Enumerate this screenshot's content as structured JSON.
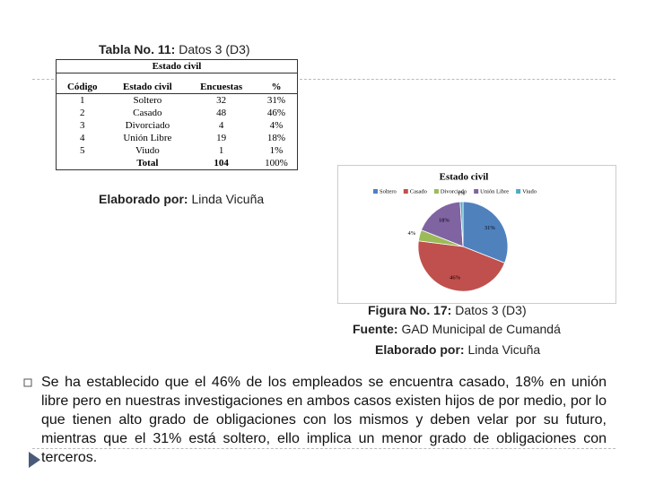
{
  "table": {
    "caption_label": "Tabla No. 11:",
    "caption_text": "Datos 3 (D3)",
    "group_header": "Estado civil",
    "columns": [
      "Código",
      "Estado civil",
      "Encuestas",
      "%"
    ],
    "rows": [
      [
        "1",
        "Soltero",
        "32",
        "31%"
      ],
      [
        "2",
        "Casado",
        "48",
        "46%"
      ],
      [
        "3",
        "Divorciado",
        "4",
        "4%"
      ],
      [
        "4",
        "Unión Libre",
        "19",
        "18%"
      ],
      [
        "5",
        "Viudo",
        "1",
        "1%"
      ]
    ],
    "total": {
      "label": "Total",
      "count": "104",
      "percent": "100%"
    }
  },
  "table_credit": {
    "label": "Elaborado por:",
    "text": "Linda Vicuña"
  },
  "chart_data": {
    "type": "pie",
    "title": "Estado civil",
    "categories": [
      "Soltero",
      "Casado",
      "Divorciado",
      "Unión Libre",
      "Viudo"
    ],
    "values": [
      31,
      46,
      4,
      18,
      1
    ],
    "value_labels": [
      "31%",
      "46%",
      "4%",
      "18%",
      "1%"
    ],
    "colors": [
      "#4f81bd",
      "#c0504d",
      "#9bbb59",
      "#8064a2",
      "#4bacc6"
    ],
    "legend": "top"
  },
  "figure_caption": {
    "label": "Figura No. 17:",
    "text": "Datos 3 (D3)"
  },
  "source": {
    "label": "Fuente:",
    "text": "GAD Municipal de Cumandá"
  },
  "chart_credit": {
    "label": "Elaborado por:",
    "text": "Linda Vicuña"
  },
  "paragraph": "Se ha establecido que el 46% de los empleados se encuentra casado, 18% en unión libre pero en nuestras investigaciones en ambos casos existen hijos de por medio, por lo que tienen alto grado de obligaciones con los mismos y deben velar por su futuro, mientras que el 31% está soltero, ello implica un menor grado de obligaciones con terceros."
}
